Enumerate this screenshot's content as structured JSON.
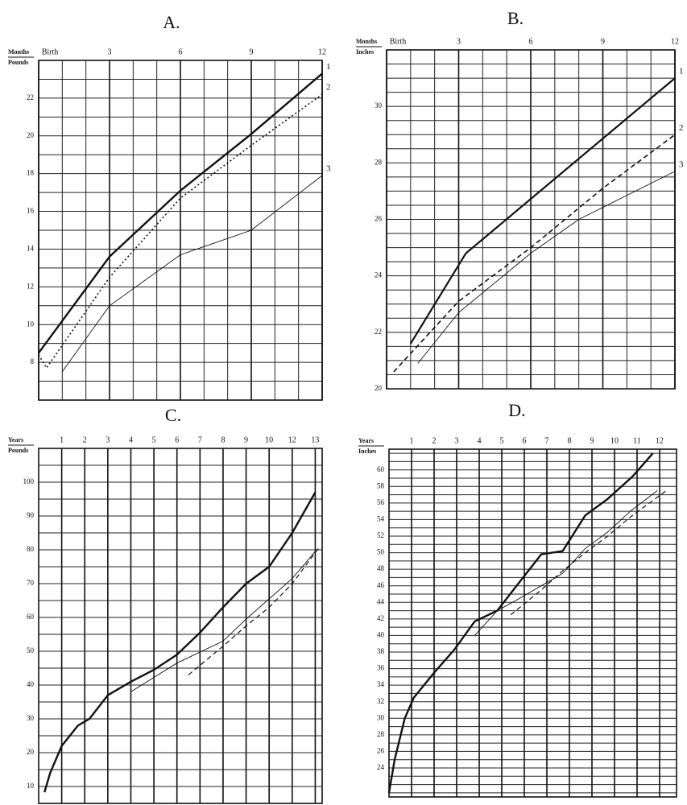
{
  "chart_data": [
    {
      "type": "line",
      "title": "A.",
      "x_label": "Months",
      "y_label": "Pounds",
      "xlim": [
        0,
        12
      ],
      "ylim": [
        6,
        24
      ],
      "xticks": [
        {
          "value": 0,
          "label": "Birth"
        },
        3,
        6,
        9,
        12
      ],
      "yticks": [
        8,
        10,
        12,
        14,
        16,
        18,
        20,
        22
      ],
      "grid_step": {
        "x": 1,
        "y": 1
      },
      "series": [
        {
          "name": "1",
          "color": "#111111",
          "width": 2.4,
          "dash": "solid",
          "x": [
            0,
            3,
            6,
            9,
            12
          ],
          "values": [
            8.5,
            13.6,
            17.1,
            20.1,
            23.3
          ]
        },
        {
          "name": "2",
          "color": "#111111",
          "width": 1.6,
          "dash": "dotted",
          "x": [
            0,
            0.33,
            3,
            6,
            9,
            12
          ],
          "values": [
            8.4,
            7.7,
            12.5,
            16.7,
            19.5,
            22.2
          ]
        },
        {
          "name": "3",
          "color": "#111111",
          "width": 0.9,
          "dash": "solid",
          "x": [
            1,
            3,
            6,
            9,
            12
          ],
          "values": [
            7.5,
            11.0,
            13.7,
            15.0,
            17.9
          ]
        }
      ]
    },
    {
      "type": "line",
      "title": "B.",
      "x_label": "Months",
      "y_label": "Inches",
      "xlim": [
        0,
        12
      ],
      "ylim": [
        20,
        32
      ],
      "xticks": [
        {
          "value": 0,
          "label": "Birth"
        },
        3,
        6,
        9,
        12
      ],
      "yticks": [
        20,
        22,
        24,
        26,
        28,
        30
      ],
      "grid_step": {
        "x": 1,
        "y": 0.5
      },
      "series": [
        {
          "name": "1",
          "color": "#111111",
          "width": 2.2,
          "dash": "solid",
          "x": [
            1,
            3.3,
            12
          ],
          "values": [
            21.6,
            24.8,
            31.0
          ]
        },
        {
          "name": "2",
          "color": "#111111",
          "width": 1.6,
          "dash": "dashed",
          "x": [
            0.3,
            3,
            6,
            9,
            12
          ],
          "values": [
            20.6,
            23.1,
            25.0,
            27.1,
            29.0
          ]
        },
        {
          "name": "3",
          "color": "#111111",
          "width": 0.9,
          "dash": "solid",
          "x": [
            1.3,
            3,
            6,
            8,
            12
          ],
          "values": [
            20.9,
            22.7,
            24.8,
            26.0,
            27.7
          ]
        }
      ]
    },
    {
      "type": "line",
      "title": "C.",
      "x_label": "Years",
      "y_label": "Pounds",
      "xlim": [
        0,
        12.3
      ],
      "ylim": [
        5,
        110
      ],
      "xticks": [
        1,
        2,
        3,
        4,
        5,
        6,
        7,
        8,
        9,
        10,
        {
          "value": 11,
          "label": "12"
        },
        {
          "value": 12,
          "label": "13"
        }
      ],
      "yticks": [
        10,
        20,
        30,
        40,
        50,
        60,
        70,
        80,
        90,
        100
      ],
      "grid_step": {
        "x": 1,
        "y": 5
      },
      "series": [
        {
          "color": "#111111",
          "width": 2.4,
          "dash": "solid",
          "x": [
            0.25,
            0.5,
            1,
            1.7,
            2.2,
            3,
            4,
            5,
            6,
            7,
            8,
            9,
            10,
            11,
            12
          ],
          "values": [
            8.3,
            14,
            22,
            28,
            30,
            37,
            41,
            44.5,
            49,
            55.5,
            63,
            70,
            75,
            85,
            97
          ]
        },
        {
          "color": "#111111",
          "width": 0.9,
          "dash": "solid",
          "x": [
            4,
            6,
            8,
            9,
            10,
            11,
            12
          ],
          "values": [
            38,
            46.5,
            53,
            59.5,
            65.5,
            71.5,
            79.5
          ]
        },
        {
          "color": "#111111",
          "width": 1.2,
          "dash": "dashed",
          "x": [
            6.5,
            8,
            9,
            10,
            11,
            12.2
          ],
          "values": [
            43,
            51.5,
            57.5,
            63,
            70,
            81
          ]
        }
      ]
    },
    {
      "type": "line",
      "title": "D.",
      "x_label": "Years",
      "y_label": "Inches",
      "xlim": [
        0,
        12.75
      ],
      "ylim": [
        20.5,
        62.5
      ],
      "xticks": [
        1,
        2,
        3,
        4,
        5,
        6,
        7,
        8,
        9,
        10,
        11,
        12
      ],
      "yticks": [
        24,
        26,
        28,
        30,
        32,
        34,
        36,
        38,
        40,
        42,
        44,
        46,
        48,
        50,
        52,
        54,
        56,
        58,
        60
      ],
      "grid_step": {
        "x": 1,
        "y": 1
      },
      "series": [
        {
          "color": "#111111",
          "width": 2.4,
          "dash": "solid",
          "x": [
            0,
            0.25,
            0.7,
            1.1,
            2,
            2.9,
            3.8,
            4.8,
            5.8,
            6.75,
            7.7,
            8.7,
            9.7,
            10.8,
            11.7
          ],
          "values": [
            21,
            25,
            30,
            32.5,
            35.5,
            38.3,
            41.7,
            43,
            46.5,
            49.8,
            50.2,
            54.5,
            56.5,
            59.2,
            62
          ]
        },
        {
          "color": "#111111",
          "width": 0.9,
          "dash": "solid",
          "x": [
            3.8,
            4.8,
            5.8,
            6.75,
            7.7,
            8.7,
            9.7,
            10.7,
            11.9
          ],
          "values": [
            40,
            43,
            44.5,
            46,
            47.5,
            50.5,
            52.5,
            55,
            57.5
          ]
        },
        {
          "color": "#111111",
          "width": 1.2,
          "dash": "dashed",
          "x": [
            5.4,
            6.75,
            7.7,
            8.7,
            9.7,
            10.7,
            12.3
          ],
          "values": [
            42.5,
            45.5,
            47.8,
            50,
            52,
            54.3,
            57.5
          ]
        }
      ]
    }
  ]
}
